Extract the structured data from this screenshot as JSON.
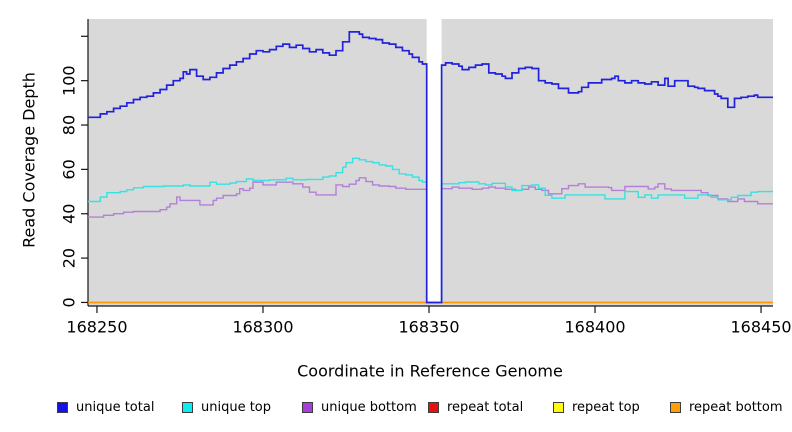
{
  "figure": {
    "x_axis_label": "Coordinate in Reference Genome",
    "y_axis_label": "Read Coverage Depth"
  },
  "legend": {
    "items": [
      {
        "label": "unique total",
        "color": "#1111e8"
      },
      {
        "label": "unique top",
        "color": "#0ceeee"
      },
      {
        "label": "unique bottom",
        "color": "#a43fd8"
      },
      {
        "label": "repeat total",
        "color": "#e81111"
      },
      {
        "label": "repeat top",
        "color": "#fcfc0c"
      },
      {
        "label": "repeat bottom",
        "color": "#ff9d0a"
      }
    ]
  },
  "chart_data": {
    "type": "line",
    "subtype": "step",
    "title": "",
    "xlabel": "Coordinate in Reference Genome",
    "ylabel": "Read Coverage Depth",
    "xlim": [
      168247.3,
      168453.6
    ],
    "ylim": [
      -1.6,
      127.8
    ],
    "background": "#d9d9d9",
    "grid": false,
    "legend_position": "bottom",
    "x_ticks": [
      {
        "v": 168250,
        "label": "168250"
      },
      {
        "v": 168300,
        "label": "168300"
      },
      {
        "v": 168350,
        "label": "168350"
      },
      {
        "v": 168400,
        "label": "168400"
      },
      {
        "v": 168450,
        "label": "168450"
      }
    ],
    "y_ticks": [
      {
        "v": 0,
        "label": "0"
      },
      {
        "v": 20,
        "label": "20"
      },
      {
        "v": 40,
        "label": "40"
      },
      {
        "v": 60,
        "label": "60"
      },
      {
        "v": 80,
        "label": "80"
      },
      {
        "v": 100,
        "label": "100"
      },
      {
        "v": 120,
        "label": ""
      }
    ],
    "gap_region": {
      "x0": 168349.3,
      "x1": 168353.8,
      "color": "#ffffff"
    },
    "series": [
      {
        "name": "repeat total",
        "color": "#e81111",
        "width": 1.2,
        "points": [
          [
            168247.3,
            0
          ],
          [
            168453,
            0
          ]
        ]
      },
      {
        "name": "repeat top",
        "color": "#fcfc0c",
        "width": 1.2,
        "points": [
          [
            168247.3,
            0
          ],
          [
            168453,
            0
          ]
        ]
      },
      {
        "name": "repeat bottom",
        "color": "#ff9408",
        "width": 1.5,
        "points": [
          [
            168247.3,
            0
          ],
          [
            168453,
            0
          ]
        ]
      },
      {
        "name": "unique bottom",
        "color": "#b380d8",
        "width": 1.4,
        "points": [
          [
            168247.3,
            38.5
          ],
          [
            168252,
            39.3
          ],
          [
            168255,
            40
          ],
          [
            168258,
            40.7
          ],
          [
            168261,
            41
          ],
          [
            168269,
            41.8
          ],
          [
            168271,
            43
          ],
          [
            168272,
            44.5
          ],
          [
            168274,
            47.5
          ],
          [
            168275,
            46
          ],
          [
            168281,
            44
          ],
          [
            168285,
            46
          ],
          [
            168286,
            47
          ],
          [
            168288,
            48.2
          ],
          [
            168292,
            49
          ],
          [
            168293,
            51.3
          ],
          [
            168294,
            50.5
          ],
          [
            168296,
            51.5
          ],
          [
            168297,
            54.2
          ],
          [
            168300,
            53
          ],
          [
            168304,
            54.2
          ],
          [
            168309,
            53.5
          ],
          [
            168312,
            52
          ],
          [
            168314,
            49.7
          ],
          [
            168316,
            48.5
          ],
          [
            168322,
            53
          ],
          [
            168324,
            52.3
          ],
          [
            168326,
            53.3
          ],
          [
            168328,
            55
          ],
          [
            168329,
            56.2
          ],
          [
            168331,
            54.5
          ],
          [
            168333,
            53
          ],
          [
            168335,
            52.5
          ],
          [
            168338,
            52.3
          ],
          [
            168340,
            51.5
          ],
          [
            168343,
            51
          ],
          [
            168348,
            51
          ],
          [
            168349.3,
            0
          ],
          [
            168353.8,
            51.3
          ],
          [
            168357,
            52
          ],
          [
            168359,
            51.5
          ],
          [
            168363,
            51
          ],
          [
            168366,
            51.5
          ],
          [
            168368,
            52
          ],
          [
            168370,
            51.5
          ],
          [
            168373,
            51
          ],
          [
            168376,
            50.5
          ],
          [
            168378,
            51
          ],
          [
            168380,
            52
          ],
          [
            168382,
            51
          ],
          [
            168384,
            50.5
          ],
          [
            168386,
            49
          ],
          [
            168390,
            51.3
          ],
          [
            168392,
            52.7
          ],
          [
            168395,
            53.5
          ],
          [
            168397,
            52
          ],
          [
            168404,
            51.8
          ],
          [
            168405,
            50.5
          ],
          [
            168409,
            52.3
          ],
          [
            168414,
            52.3
          ],
          [
            168416,
            51.2
          ],
          [
            168418,
            52
          ],
          [
            168419,
            53.5
          ],
          [
            168421,
            51.2
          ],
          [
            168423,
            50.5
          ],
          [
            168432,
            49.5
          ],
          [
            168434,
            48.2
          ],
          [
            168437,
            46.7
          ],
          [
            168440,
            45.5
          ],
          [
            168443,
            46.7
          ],
          [
            168445,
            45.5
          ],
          [
            168448,
            45.5
          ],
          [
            168449,
            44.5
          ]
        ]
      },
      {
        "name": "unique top",
        "color": "#35e2e2",
        "width": 1.4,
        "points": [
          [
            168247.3,
            45.5
          ],
          [
            168251,
            47.5
          ],
          [
            168253,
            49.5
          ],
          [
            168257,
            50
          ],
          [
            168259,
            50.8
          ],
          [
            168261,
            51.7
          ],
          [
            168264,
            52.3
          ],
          [
            168270,
            52.5
          ],
          [
            168276,
            53
          ],
          [
            168278,
            52.5
          ],
          [
            168284,
            54.2
          ],
          [
            168286,
            53.3
          ],
          [
            168290,
            53.8
          ],
          [
            168292,
            54.5
          ],
          [
            168295,
            55.7
          ],
          [
            168297,
            55
          ],
          [
            168302,
            55.3
          ],
          [
            168307,
            56
          ],
          [
            168309,
            55.3
          ],
          [
            168313,
            55.5
          ],
          [
            168318,
            56.5
          ],
          [
            168320,
            57
          ],
          [
            168322,
            58.5
          ],
          [
            168324,
            61
          ],
          [
            168325,
            63
          ],
          [
            168327,
            65
          ],
          [
            168329,
            64.3
          ],
          [
            168331,
            63.5
          ],
          [
            168333,
            63
          ],
          [
            168335,
            62
          ],
          [
            168337,
            61.5
          ],
          [
            168339,
            60
          ],
          [
            168341,
            58
          ],
          [
            168343,
            57.5
          ],
          [
            168345,
            56.5
          ],
          [
            168347,
            55
          ],
          [
            168348,
            54.3
          ],
          [
            168349.3,
            0
          ],
          [
            168353.8,
            53.5
          ],
          [
            168359,
            54
          ],
          [
            168361,
            54.3
          ],
          [
            168365,
            53.5
          ],
          [
            168367,
            53
          ],
          [
            168369,
            53.7
          ],
          [
            168373,
            52
          ],
          [
            168375,
            50.5
          ],
          [
            168378,
            52.7
          ],
          [
            168381,
            53
          ],
          [
            168383,
            51.5
          ],
          [
            168385,
            48.3
          ],
          [
            168387,
            47
          ],
          [
            168391,
            48.5
          ],
          [
            168403,
            46.7
          ],
          [
            168409,
            50
          ],
          [
            168413,
            47.4
          ],
          [
            168415,
            48.5
          ],
          [
            168417,
            47
          ],
          [
            168419,
            48.5
          ],
          [
            168427,
            47
          ],
          [
            168431,
            48.5
          ],
          [
            168435,
            47.4
          ],
          [
            168437,
            46.3
          ],
          [
            168441,
            47.4
          ],
          [
            168443,
            48.2
          ],
          [
            168447,
            49.7
          ],
          [
            168449,
            50
          ]
        ]
      },
      {
        "name": "unique total",
        "color": "#2222dd",
        "width": 1.7,
        "points": [
          [
            168247.3,
            83.5
          ],
          [
            168251,
            85
          ],
          [
            168253,
            86
          ],
          [
            168255,
            87.5
          ],
          [
            168257,
            88.5
          ],
          [
            168259,
            90
          ],
          [
            168261,
            91.5
          ],
          [
            168263,
            92.5
          ],
          [
            168265,
            93
          ],
          [
            168267,
            94.5
          ],
          [
            168269,
            96
          ],
          [
            168271,
            98
          ],
          [
            168273,
            100
          ],
          [
            168275,
            101
          ],
          [
            168276,
            104
          ],
          [
            168277,
            103
          ],
          [
            168278,
            105
          ],
          [
            168280,
            102
          ],
          [
            168282,
            100.5
          ],
          [
            168284,
            101.5
          ],
          [
            168286,
            103.5
          ],
          [
            168288,
            105.5
          ],
          [
            168290,
            107
          ],
          [
            168292,
            108.5
          ],
          [
            168294,
            110
          ],
          [
            168296,
            112
          ],
          [
            168298,
            113.5
          ],
          [
            168300,
            113
          ],
          [
            168302,
            114
          ],
          [
            168304,
            115.5
          ],
          [
            168306,
            116.5
          ],
          [
            168308,
            115
          ],
          [
            168310,
            116
          ],
          [
            168312,
            114.5
          ],
          [
            168314,
            113
          ],
          [
            168316,
            114
          ],
          [
            168318,
            112.5
          ],
          [
            168320,
            111.5
          ],
          [
            168322,
            113.5
          ],
          [
            168324,
            117.5
          ],
          [
            168326,
            122
          ],
          [
            168329,
            121
          ],
          [
            168330,
            119.5
          ],
          [
            168332,
            119
          ],
          [
            168334,
            118.5
          ],
          [
            168336,
            117
          ],
          [
            168338,
            116.5
          ],
          [
            168340,
            115
          ],
          [
            168342,
            113.5
          ],
          [
            168344,
            112
          ],
          [
            168345,
            110.5
          ],
          [
            168347,
            108.5
          ],
          [
            168348,
            107.5
          ],
          [
            168349.3,
            0
          ],
          [
            168353.8,
            107
          ],
          [
            168355,
            108
          ],
          [
            168357,
            107.5
          ],
          [
            168359,
            106.5
          ],
          [
            168360,
            105
          ],
          [
            168362,
            106
          ],
          [
            168364,
            107
          ],
          [
            168366,
            107.5
          ],
          [
            168368,
            103.5
          ],
          [
            168370,
            103
          ],
          [
            168372,
            102
          ],
          [
            168373,
            101
          ],
          [
            168375,
            103.5
          ],
          [
            168377,
            105.5
          ],
          [
            168379,
            106
          ],
          [
            168381,
            105.5
          ],
          [
            168383,
            100
          ],
          [
            168385,
            99
          ],
          [
            168387,
            98.5
          ],
          [
            168389,
            96.5
          ],
          [
            168392,
            94.5
          ],
          [
            168395,
            95
          ],
          [
            168396,
            97
          ],
          [
            168398,
            99
          ],
          [
            168400,
            99
          ],
          [
            168402,
            100.5
          ],
          [
            168405,
            101
          ],
          [
            168406,
            102
          ],
          [
            168407,
            100
          ],
          [
            168409,
            99
          ],
          [
            168411,
            100
          ],
          [
            168413,
            99
          ],
          [
            168415,
            98.5
          ],
          [
            168417,
            99.5
          ],
          [
            168419,
            98
          ],
          [
            168421,
            101
          ],
          [
            168422,
            97.5
          ],
          [
            168424,
            100
          ],
          [
            168426,
            100
          ],
          [
            168428,
            97.5
          ],
          [
            168430,
            97
          ],
          [
            168431,
            96.5
          ],
          [
            168433,
            95.5
          ],
          [
            168436,
            94
          ],
          [
            168437,
            93
          ],
          [
            168438,
            92
          ],
          [
            168440,
            88
          ],
          [
            168442,
            92
          ],
          [
            168444,
            92.5
          ],
          [
            168446,
            93
          ],
          [
            168448,
            93.5
          ],
          [
            168449,
            92.5
          ]
        ]
      }
    ]
  }
}
